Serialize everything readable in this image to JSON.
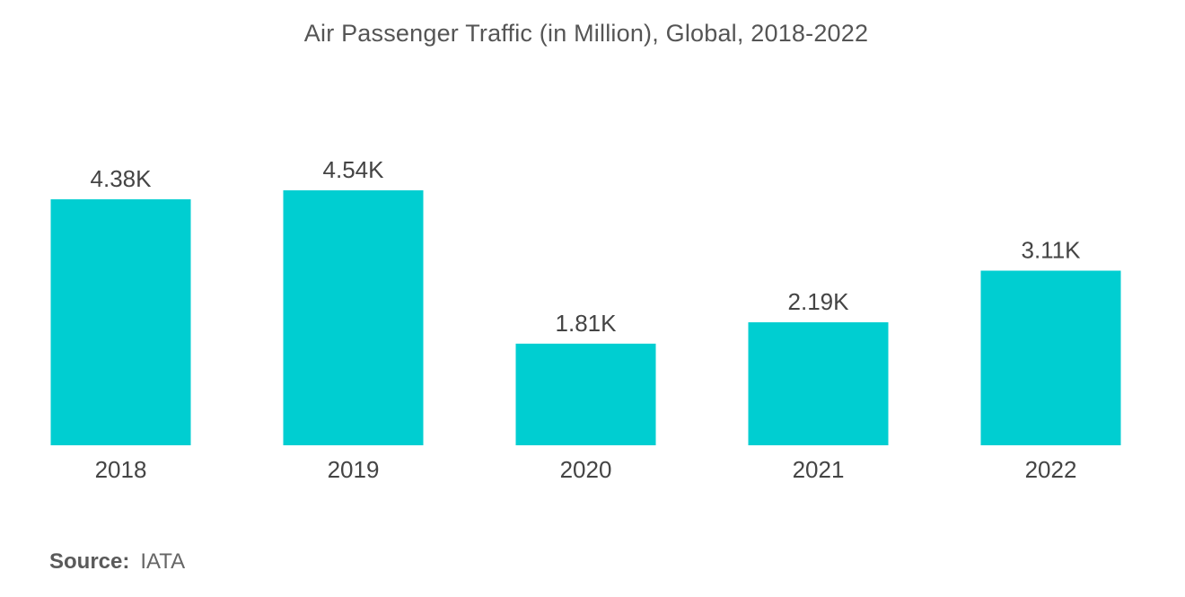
{
  "chart_data": {
    "type": "bar",
    "title": "Air Passenger Traffic (in Million), Global, 2018-2022",
    "categories": [
      "2018",
      "2019",
      "2020",
      "2021",
      "2022"
    ],
    "values": [
      4380,
      4540,
      1810,
      2190,
      3110
    ],
    "value_labels": [
      "4.38K",
      "4.54K",
      "1.81K",
      "2.19K",
      "3.11K"
    ],
    "xlabel": "",
    "ylabel": "",
    "ylim": [
      0,
      5000
    ],
    "grid": false,
    "legend": "none",
    "bar_color": "#00CED1"
  },
  "source": {
    "label": "Source:",
    "value": "IATA"
  }
}
